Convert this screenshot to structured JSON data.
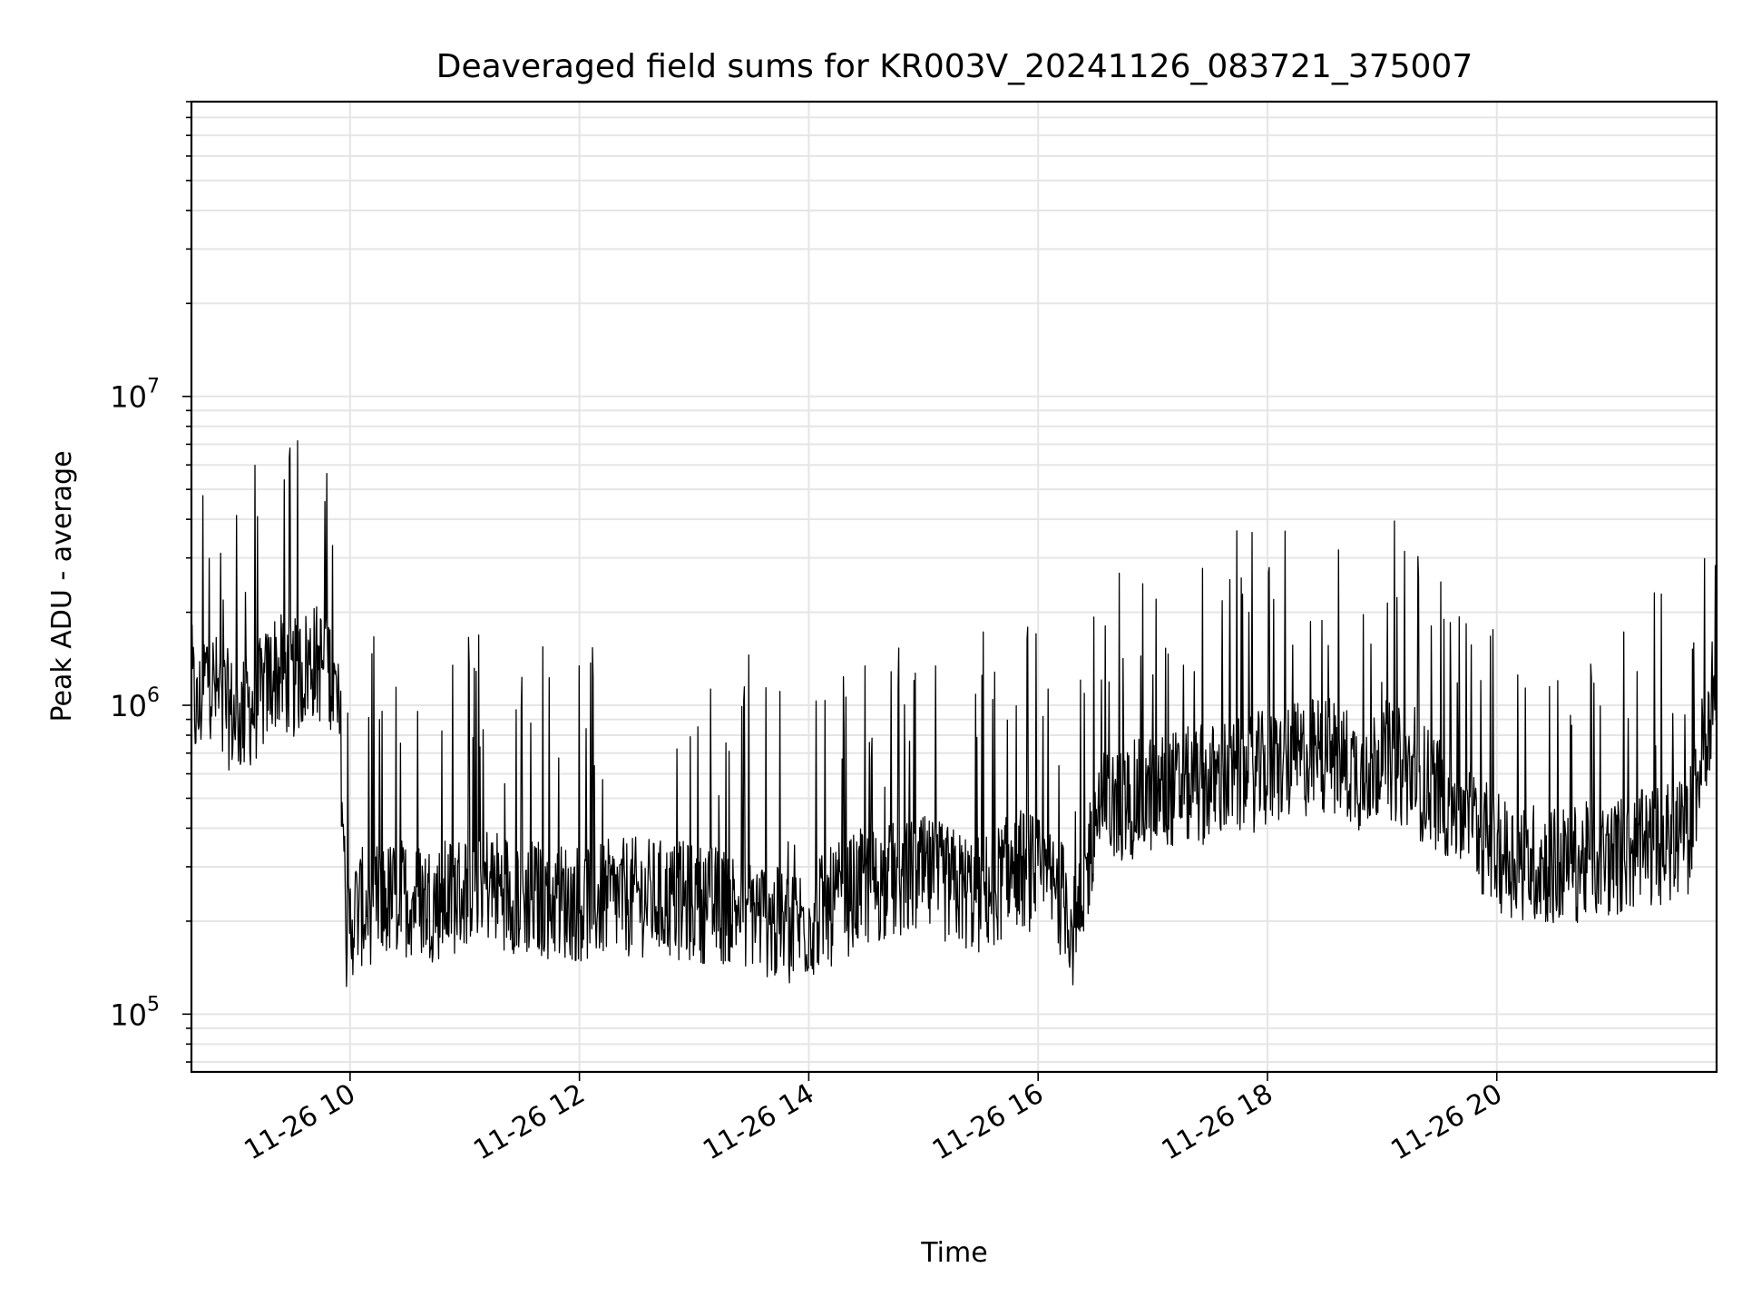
{
  "chart_data": {
    "type": "line",
    "title": "Deaveraged field sums for KR003V_20241126_083721_375007",
    "xlabel": "Time",
    "ylabel": "Peak ADU - average",
    "y_scale": "log",
    "x_range": [
      "11-26 08:37",
      "11-26 21:55"
    ],
    "ylim": [
      65000,
      90000000
    ],
    "x_ticks": [
      {
        "value": "11-26 10:00",
        "label": "11-26 10"
      },
      {
        "value": "11-26 12:00",
        "label": "11-26 12"
      },
      {
        "value": "11-26 14:00",
        "label": "11-26 14"
      },
      {
        "value": "11-26 16:00",
        "label": "11-26 16"
      },
      {
        "value": "11-26 18:00",
        "label": "11-26 18"
      },
      {
        "value": "11-26 20:00",
        "label": "11-26 20"
      }
    ],
    "y_ticks": [
      {
        "value": 100000,
        "base": "10",
        "exp": "5"
      },
      {
        "value": 1000000,
        "base": "10",
        "exp": "6"
      },
      {
        "value": 10000000,
        "base": "10",
        "exp": "7"
      }
    ],
    "grid": "major and minor",
    "line_color": "#000000",
    "grid_color": "#e5e5e5",
    "series": [
      {
        "x": [
          "11-26 08:37",
          "11-26 08:40",
          "11-26 08:45",
          "11-26 08:50",
          "11-26 09:00",
          "11-26 09:10",
          "11-26 09:15",
          "11-26 09:20",
          "11-26 09:30",
          "11-26 09:40",
          "11-26 09:50",
          "11-26 09:55",
          "11-26 09:58",
          "11-26 10:02",
          "11-26 10:05",
          "11-26 10:15",
          "11-26 10:30",
          "11-26 10:45",
          "11-26 11:00",
          "11-26 11:05",
          "11-26 11:15",
          "11-26 11:30",
          "11-26 12:00",
          "11-26 12:30",
          "11-26 13:00",
          "11-26 13:30",
          "11-26 13:45",
          "11-26 14:00",
          "11-26 14:30",
          "11-26 15:00",
          "11-26 15:30",
          "11-26 15:50",
          "11-26 16:00",
          "11-26 16:15",
          "11-26 16:20",
          "11-26 16:30",
          "11-26 16:45",
          "11-26 17:00",
          "11-26 17:30",
          "11-26 18:00",
          "11-26 18:30",
          "11-26 18:50",
          "11-26 19:00",
          "11-26 19:30",
          "11-26 19:50",
          "11-26 20:00",
          "11-26 20:30",
          "11-26 21:00",
          "11-26 21:30",
          "11-26 21:40",
          "11-26 21:55"
        ],
        "values": [
          1200000,
          900000,
          1300000,
          1100000,
          900000,
          1000000,
          1100000,
          1300000,
          1200000,
          1400000,
          1300000,
          800000,
          180000,
          210000,
          220000,
          230000,
          240000,
          230000,
          250000,
          280000,
          260000,
          240000,
          230000,
          240000,
          230000,
          220000,
          190000,
          200000,
          260000,
          280000,
          240000,
          300000,
          280000,
          230000,
          170000,
          450000,
          480000,
          520000,
          560000,
          620000,
          700000,
          600000,
          680000,
          520000,
          400000,
          330000,
          300000,
          320000,
          360000,
          380000,
          1300000
        ]
      }
    ]
  }
}
